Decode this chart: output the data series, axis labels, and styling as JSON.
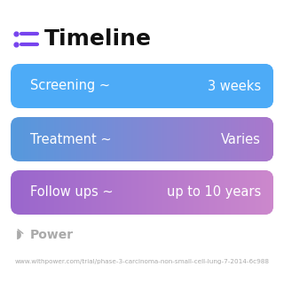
{
  "title": "Timeline",
  "title_fontsize": 18,
  "title_fontweight": "bold",
  "title_color": "#111111",
  "icon_color": "#7744ee",
  "background_color": "#ffffff",
  "rows": [
    {
      "label": "Screening ~",
      "value": "3 weeks",
      "color_left": "#4dabf7",
      "color_right": "#4dabf7"
    },
    {
      "label": "Treatment ~",
      "value": "Varies",
      "color_left": "#5599dd",
      "color_right": "#aa77cc"
    },
    {
      "label": "Follow ups ~",
      "value": "up to 10 years",
      "color_left": "#9966cc",
      "color_right": "#cc88cc"
    }
  ],
  "row_text_color": "#ffffff",
  "row_fontsize": 10.5,
  "footer_text": "Power",
  "footer_url": "www.withpower.com/trial/phase-3-carcinoma-non-small-cell-lung-7-2014-6c988",
  "footer_logo_color": "#aaaaaa",
  "footer_text_color": "#aaaaaa",
  "footer_url_color": "#aaaaaa"
}
